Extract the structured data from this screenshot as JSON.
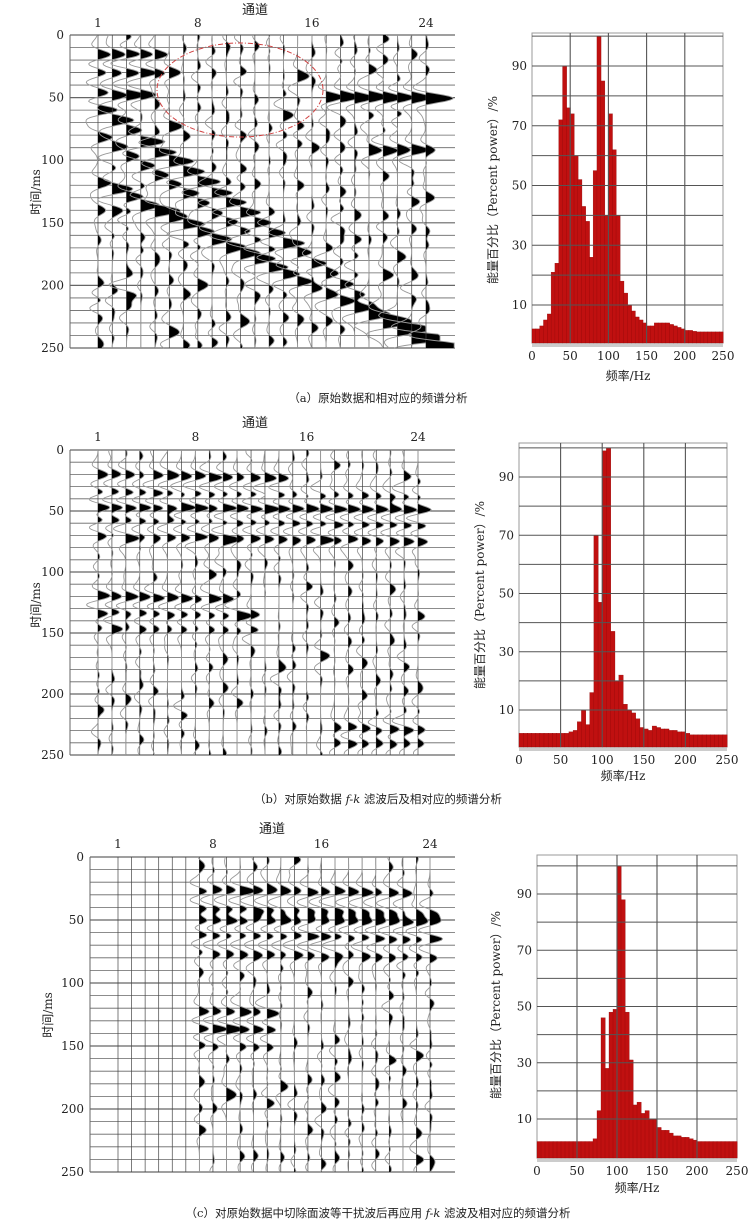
{
  "panels": [
    {
      "id": "a",
      "caption_parts": [
        "（a）原始数据和相对应的频谱分析",
        "",
        ""
      ],
      "seismic": {
        "title": "通道",
        "channel_ticks": [
          "1",
          "8",
          "16",
          "24"
        ],
        "ylabel": "时间/ms",
        "yticks": [
          "0",
          "50",
          "100",
          "150",
          "200",
          "250"
        ],
        "n_traces": 24,
        "time_range_ms": [
          0,
          250
        ]
      }
    },
    {
      "id": "b",
      "caption_parts": [
        "（b）对原始数据 ",
        "f-k",
        " 滤波后及相对应的频谱分析"
      ],
      "seismic": {
        "title": "通道",
        "channel_ticks": [
          "1",
          "8",
          "16",
          "24"
        ],
        "ylabel": "时间/ms",
        "yticks": [
          "0",
          "50",
          "100",
          "150",
          "200",
          "250"
        ],
        "n_traces": 24,
        "time_range_ms": [
          0,
          250
        ]
      }
    },
    {
      "id": "c",
      "caption_parts": [
        "（c）对原始数据中切除面波等干扰波后再应用 ",
        "f-k",
        " 滤波及相对应的频谱分析"
      ],
      "seismic": {
        "title": "通道",
        "channel_ticks": [
          "1",
          "8",
          "16",
          "24"
        ],
        "ylabel": "时间/ms",
        "yticks": [
          "0",
          "50",
          "100",
          "150",
          "200",
          "250"
        ],
        "n_traces": 24,
        "time_range_ms": [
          0,
          250
        ]
      }
    }
  ],
  "colors": {
    "bar": "#c01010",
    "bar_edge": "#8a0808",
    "grid": "#555555",
    "ellipse": "#d04040"
  },
  "chart_data": [
    {
      "type": "bar",
      "title": "",
      "xlabel": "频率/Hz",
      "ylabel": "能量百分比（Percent power）/%",
      "xticks": [
        "0",
        "50",
        "100",
        "150",
        "200",
        "250"
      ],
      "yticks": [
        "10",
        "30",
        "50",
        "70",
        "90"
      ],
      "xlim": [
        0,
        250
      ],
      "ylim": [
        -3,
        100
      ],
      "grid": true,
      "bin_width_hz": 5,
      "x": [
        0,
        5,
        10,
        15,
        20,
        25,
        30,
        35,
        40,
        45,
        50,
        55,
        60,
        65,
        70,
        75,
        80,
        85,
        90,
        95,
        100,
        105,
        110,
        115,
        120,
        125,
        130,
        135,
        140,
        145,
        150,
        155,
        160,
        165,
        170,
        175,
        180,
        185,
        190,
        195,
        200,
        205,
        210,
        215,
        220,
        225,
        230,
        235,
        240,
        245
      ],
      "values": [
        2,
        2,
        3,
        5,
        7,
        21,
        24,
        72,
        90,
        76,
        74,
        60,
        52,
        43,
        38,
        26,
        55,
        100,
        85,
        40,
        74,
        62,
        40,
        18,
        14,
        10,
        8,
        6,
        5,
        4,
        3,
        3,
        4,
        4,
        4,
        4,
        3.5,
        3,
        2.5,
        2,
        1.5,
        1.5,
        1.2,
        1,
        1,
        1,
        1,
        1,
        1,
        1
      ]
    },
    {
      "type": "bar",
      "title": "",
      "xlabel": "频率/Hz",
      "ylabel": "能量百分比（Percent power）/%",
      "xticks": [
        "0",
        "50",
        "100",
        "150",
        "200",
        "250"
      ],
      "yticks": [
        "10",
        "30",
        "50",
        "70",
        "90"
      ],
      "xlim": [
        0,
        250
      ],
      "ylim": [
        -3,
        100
      ],
      "grid": true,
      "bin_width_hz": 5,
      "x": [
        0,
        5,
        10,
        15,
        20,
        25,
        30,
        35,
        40,
        45,
        50,
        55,
        60,
        65,
        70,
        75,
        80,
        85,
        90,
        95,
        100,
        105,
        110,
        115,
        120,
        125,
        130,
        135,
        140,
        145,
        150,
        155,
        160,
        165,
        170,
        175,
        180,
        185,
        190,
        195,
        200,
        205,
        210,
        215,
        220,
        225,
        230,
        235,
        240,
        245
      ],
      "values": [
        2,
        2,
        2,
        2,
        2,
        2,
        2,
        2,
        2,
        2,
        2,
        2,
        2.5,
        3,
        6,
        10,
        5,
        16,
        70,
        47,
        99,
        100,
        37,
        20,
        22,
        12,
        10,
        9,
        7,
        4,
        3.5,
        3,
        4.5,
        4,
        3.5,
        3.5,
        3,
        3,
        2.5,
        2.5,
        2,
        1.5,
        1.5,
        1.5,
        1.5,
        1.5,
        1.5,
        1.5,
        1.5,
        1.5
      ]
    },
    {
      "type": "bar",
      "title": "",
      "xlabel": "频率/Hz",
      "ylabel": "能量百分比（Percent power）/%",
      "xticks": [
        "0",
        "50",
        "100",
        "150",
        "200",
        "250"
      ],
      "yticks": [
        "10",
        "30",
        "50",
        "70",
        "90"
      ],
      "xlim": [
        0,
        250
      ],
      "ylim": [
        -3,
        100
      ],
      "grid": true,
      "bin_width_hz": 5,
      "x": [
        0,
        5,
        10,
        15,
        20,
        25,
        30,
        35,
        40,
        45,
        50,
        55,
        60,
        65,
        70,
        75,
        80,
        85,
        90,
        95,
        100,
        105,
        110,
        115,
        120,
        125,
        130,
        135,
        140,
        145,
        150,
        155,
        160,
        165,
        170,
        175,
        180,
        185,
        190,
        195,
        200,
        205,
        210,
        215,
        220,
        225,
        230,
        235,
        240,
        245
      ],
      "values": [
        2,
        2,
        2,
        2,
        2,
        2,
        2,
        2,
        2,
        2,
        2,
        2,
        2,
        2,
        3,
        13,
        46,
        28,
        48,
        49,
        100,
        88,
        48,
        31,
        15,
        16,
        12,
        13,
        10,
        10,
        7,
        6,
        6,
        5,
        4,
        4,
        3.5,
        3.5,
        3,
        2.5,
        2,
        2,
        2,
        2,
        2,
        2,
        2,
        2,
        2,
        2
      ]
    }
  ]
}
